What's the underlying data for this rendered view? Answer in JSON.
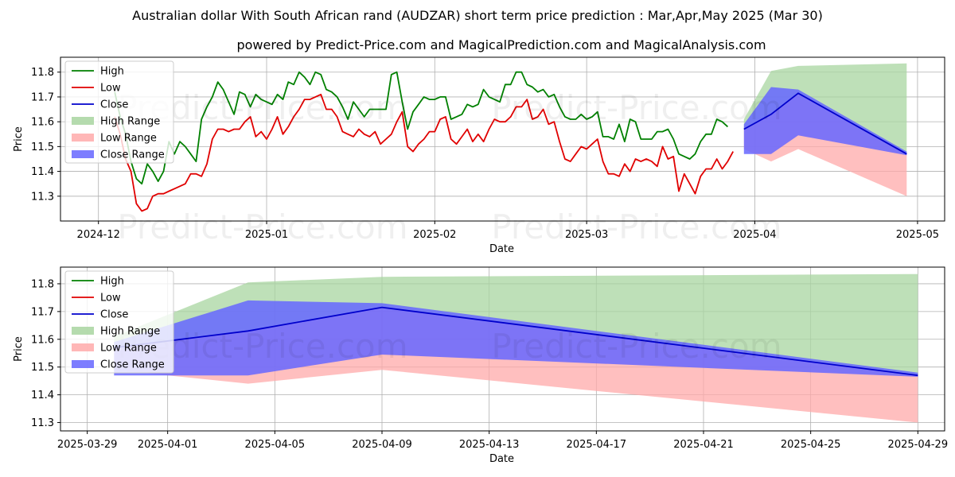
{
  "title": "Australian dollar With South African rand (AUDZAR) short term price prediction : Mar,Apr,May 2025 (Mar 30)",
  "subtitle": "powered by Predict-Price.com and MagicalPrediction.com and MagicalAnalysis.com",
  "watermark": "Predict-Price.com",
  "colors": {
    "high": "#008000",
    "low": "#e00000",
    "close": "#0000cc",
    "high_range": "#a8d5a0",
    "low_range": "#ffaaaa",
    "close_range": "#6666ff"
  },
  "chart_data": [
    {
      "type": "line",
      "xlabel": "Date",
      "ylabel": "Price",
      "xlim": [
        "2024-11-24",
        "2025-05-06"
      ],
      "ylim": [
        11.2,
        11.86
      ],
      "yticks": [
        11.3,
        11.4,
        11.5,
        11.6,
        11.7,
        11.8
      ],
      "ytick_labels": [
        "11.3",
        "11.4",
        "11.5",
        "11.6",
        "11.7",
        "11.8"
      ],
      "xticks": [
        "2024-12-01",
        "2025-01-01",
        "2025-02-01",
        "2025-03-01",
        "2025-04-01",
        "2025-05-01"
      ],
      "xtick_labels": [
        "2024-12",
        "2025-01",
        "2025-02",
        "2025-03",
        "2025-04",
        "2025-05"
      ],
      "legend": [
        "High",
        "Low",
        "Close",
        "High Range",
        "Low Range",
        "Close Range"
      ],
      "legend_position": "upper-left",
      "history_start": "2024-12-04",
      "high_values": [
        11.72,
        11.62,
        11.55,
        11.44,
        11.37,
        11.35,
        11.43,
        11.4,
        11.36,
        11.4,
        11.52,
        11.47,
        11.52,
        11.5,
        11.47,
        11.44,
        11.61,
        11.66,
        11.7,
        11.76,
        11.73,
        11.68,
        11.63,
        11.72,
        11.71,
        11.66,
        11.71,
        11.69,
        11.68,
        11.67,
        11.71,
        11.69,
        11.76,
        11.75,
        11.8,
        11.78,
        11.75,
        11.8,
        11.79,
        11.73,
        11.72,
        11.7,
        11.66,
        11.61,
        11.68,
        11.65,
        11.62,
        11.65,
        11.65,
        11.65,
        11.65,
        11.79,
        11.8,
        11.68,
        11.57,
        11.64,
        11.67,
        11.7,
        11.69,
        11.69,
        11.7,
        11.7,
        11.61,
        11.62,
        11.63,
        11.67,
        11.66,
        11.67,
        11.73,
        11.7,
        11.69,
        11.68,
        11.75,
        11.75,
        11.8,
        11.8,
        11.75,
        11.74,
        11.72,
        11.73,
        11.7,
        11.71,
        11.66,
        11.62,
        11.61,
        11.61,
        11.63,
        11.61,
        11.62,
        11.64,
        11.54,
        11.54,
        11.53,
        11.59,
        11.52,
        11.61,
        11.6,
        11.53,
        11.53,
        11.53,
        11.56,
        11.56,
        11.57,
        11.53,
        11.47,
        11.46,
        11.45,
        11.47,
        11.52,
        11.55,
        11.55,
        11.61,
        11.6,
        11.58
      ],
      "low_values": [
        11.62,
        11.55,
        11.45,
        11.4,
        11.27,
        11.24,
        11.25,
        11.3,
        11.31,
        11.31,
        11.32,
        11.33,
        11.34,
        11.35,
        11.39,
        11.39,
        11.38,
        11.43,
        11.53,
        11.57,
        11.57,
        11.56,
        11.57,
        11.57,
        11.6,
        11.62,
        11.54,
        11.56,
        11.53,
        11.57,
        11.62,
        11.55,
        11.58,
        11.62,
        11.65,
        11.69,
        11.69,
        11.7,
        11.71,
        11.65,
        11.65,
        11.62,
        11.56,
        11.55,
        11.54,
        11.57,
        11.55,
        11.54,
        11.56,
        11.51,
        11.53,
        11.55,
        11.6,
        11.64,
        11.5,
        11.48,
        11.51,
        11.53,
        11.56,
        11.56,
        11.61,
        11.62,
        11.53,
        11.51,
        11.54,
        11.57,
        11.52,
        11.55,
        11.52,
        11.57,
        11.61,
        11.6,
        11.6,
        11.62,
        11.66,
        11.66,
        11.69,
        11.61,
        11.62,
        11.65,
        11.59,
        11.6,
        11.52,
        11.45,
        11.44,
        11.47,
        11.5,
        11.49,
        11.51,
        11.53,
        11.44,
        11.39,
        11.39,
        11.38,
        11.43,
        11.4,
        11.45,
        11.44,
        11.45,
        11.44,
        11.42,
        11.5,
        11.45,
        11.46,
        11.32,
        11.39,
        11.35,
        11.31,
        11.38,
        11.41,
        11.41,
        11.45,
        11.41,
        11.44,
        11.48
      ],
      "forecast_x": [
        "2025-03-30",
        "2025-04-04",
        "2025-04-09",
        "2025-04-29"
      ],
      "forecast_close": [
        11.57,
        11.63,
        11.715,
        11.47
      ],
      "high_range": {
        "upper": [
          11.61,
          11.805,
          11.825,
          11.835
        ],
        "lower": [
          11.57,
          11.63,
          11.715,
          11.47
        ]
      },
      "low_range": {
        "upper": [
          11.57,
          11.63,
          11.715,
          11.47
        ],
        "lower": [
          11.49,
          11.44,
          11.49,
          11.3
        ]
      },
      "close_range": {
        "upper": [
          11.59,
          11.74,
          11.73,
          11.48
        ],
        "lower": [
          11.47,
          11.47,
          11.545,
          11.465
        ]
      }
    },
    {
      "type": "line",
      "xlabel": "Date",
      "ylabel": "Price",
      "xlim": [
        "2025-03-28",
        "2025-04-30"
      ],
      "ylim": [
        11.27,
        11.86
      ],
      "yticks": [
        11.3,
        11.4,
        11.5,
        11.6,
        11.7,
        11.8
      ],
      "ytick_labels": [
        "11.3",
        "11.4",
        "11.5",
        "11.6",
        "11.7",
        "11.8"
      ],
      "xticks": [
        "2025-03-29",
        "2025-04-01",
        "2025-04-05",
        "2025-04-09",
        "2025-04-13",
        "2025-04-17",
        "2025-04-21",
        "2025-04-25",
        "2025-04-29"
      ],
      "xtick_labels": [
        "2025-03-29",
        "2025-04-01",
        "2025-04-05",
        "2025-04-09",
        "2025-04-13",
        "2025-04-17",
        "2025-04-21",
        "2025-04-25",
        "2025-04-29"
      ],
      "legend": [
        "High",
        "Low",
        "Close",
        "High Range",
        "Low Range",
        "Close Range"
      ],
      "legend_position": "upper-left",
      "forecast_x": [
        "2025-03-30",
        "2025-04-04",
        "2025-04-09",
        "2025-04-29"
      ],
      "forecast_close": [
        11.57,
        11.63,
        11.715,
        11.47
      ],
      "high_range": {
        "upper": [
          11.61,
          11.805,
          11.825,
          11.835
        ],
        "lower": [
          11.57,
          11.63,
          11.715,
          11.47
        ]
      },
      "low_range": {
        "upper": [
          11.57,
          11.63,
          11.715,
          11.47
        ],
        "lower": [
          11.49,
          11.44,
          11.49,
          11.3
        ]
      },
      "close_range": {
        "upper": [
          11.59,
          11.74,
          11.73,
          11.48
        ],
        "lower": [
          11.47,
          11.47,
          11.545,
          11.465
        ]
      }
    }
  ]
}
